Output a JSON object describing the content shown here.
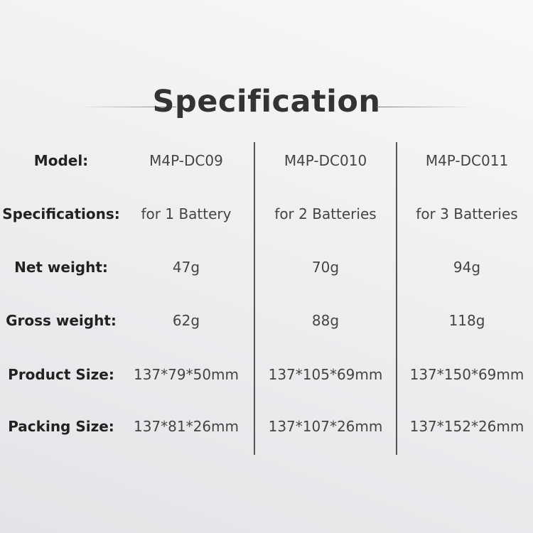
{
  "title": "Specification",
  "models": [
    "M4P-DC09",
    "M4P-DC010",
    "M4P-DC011"
  ],
  "rows": [
    {
      "label": "Model:",
      "values": [
        "M4P-DC09",
        "M4P-DC010",
        "M4P-DC011"
      ]
    },
    {
      "label": "Specifications:",
      "values": [
        "for 1 Battery",
        "for 2 Batteries",
        "for 3 Batteries"
      ]
    },
    {
      "label": "Net weight:",
      "values": [
        "47g",
        "70g",
        "94g"
      ]
    },
    {
      "label": "Gross weight:",
      "values": [
        "62g",
        "88g",
        "118g"
      ]
    },
    {
      "label": "Product Size:",
      "values": [
        "137*79*50mm",
        "137*105*69mm",
        "137*150*69mm"
      ]
    },
    {
      "label": "Packing Size:",
      "values": [
        "137*81*26mm",
        "137*107*26mm",
        "137*152*26mm"
      ]
    }
  ]
}
